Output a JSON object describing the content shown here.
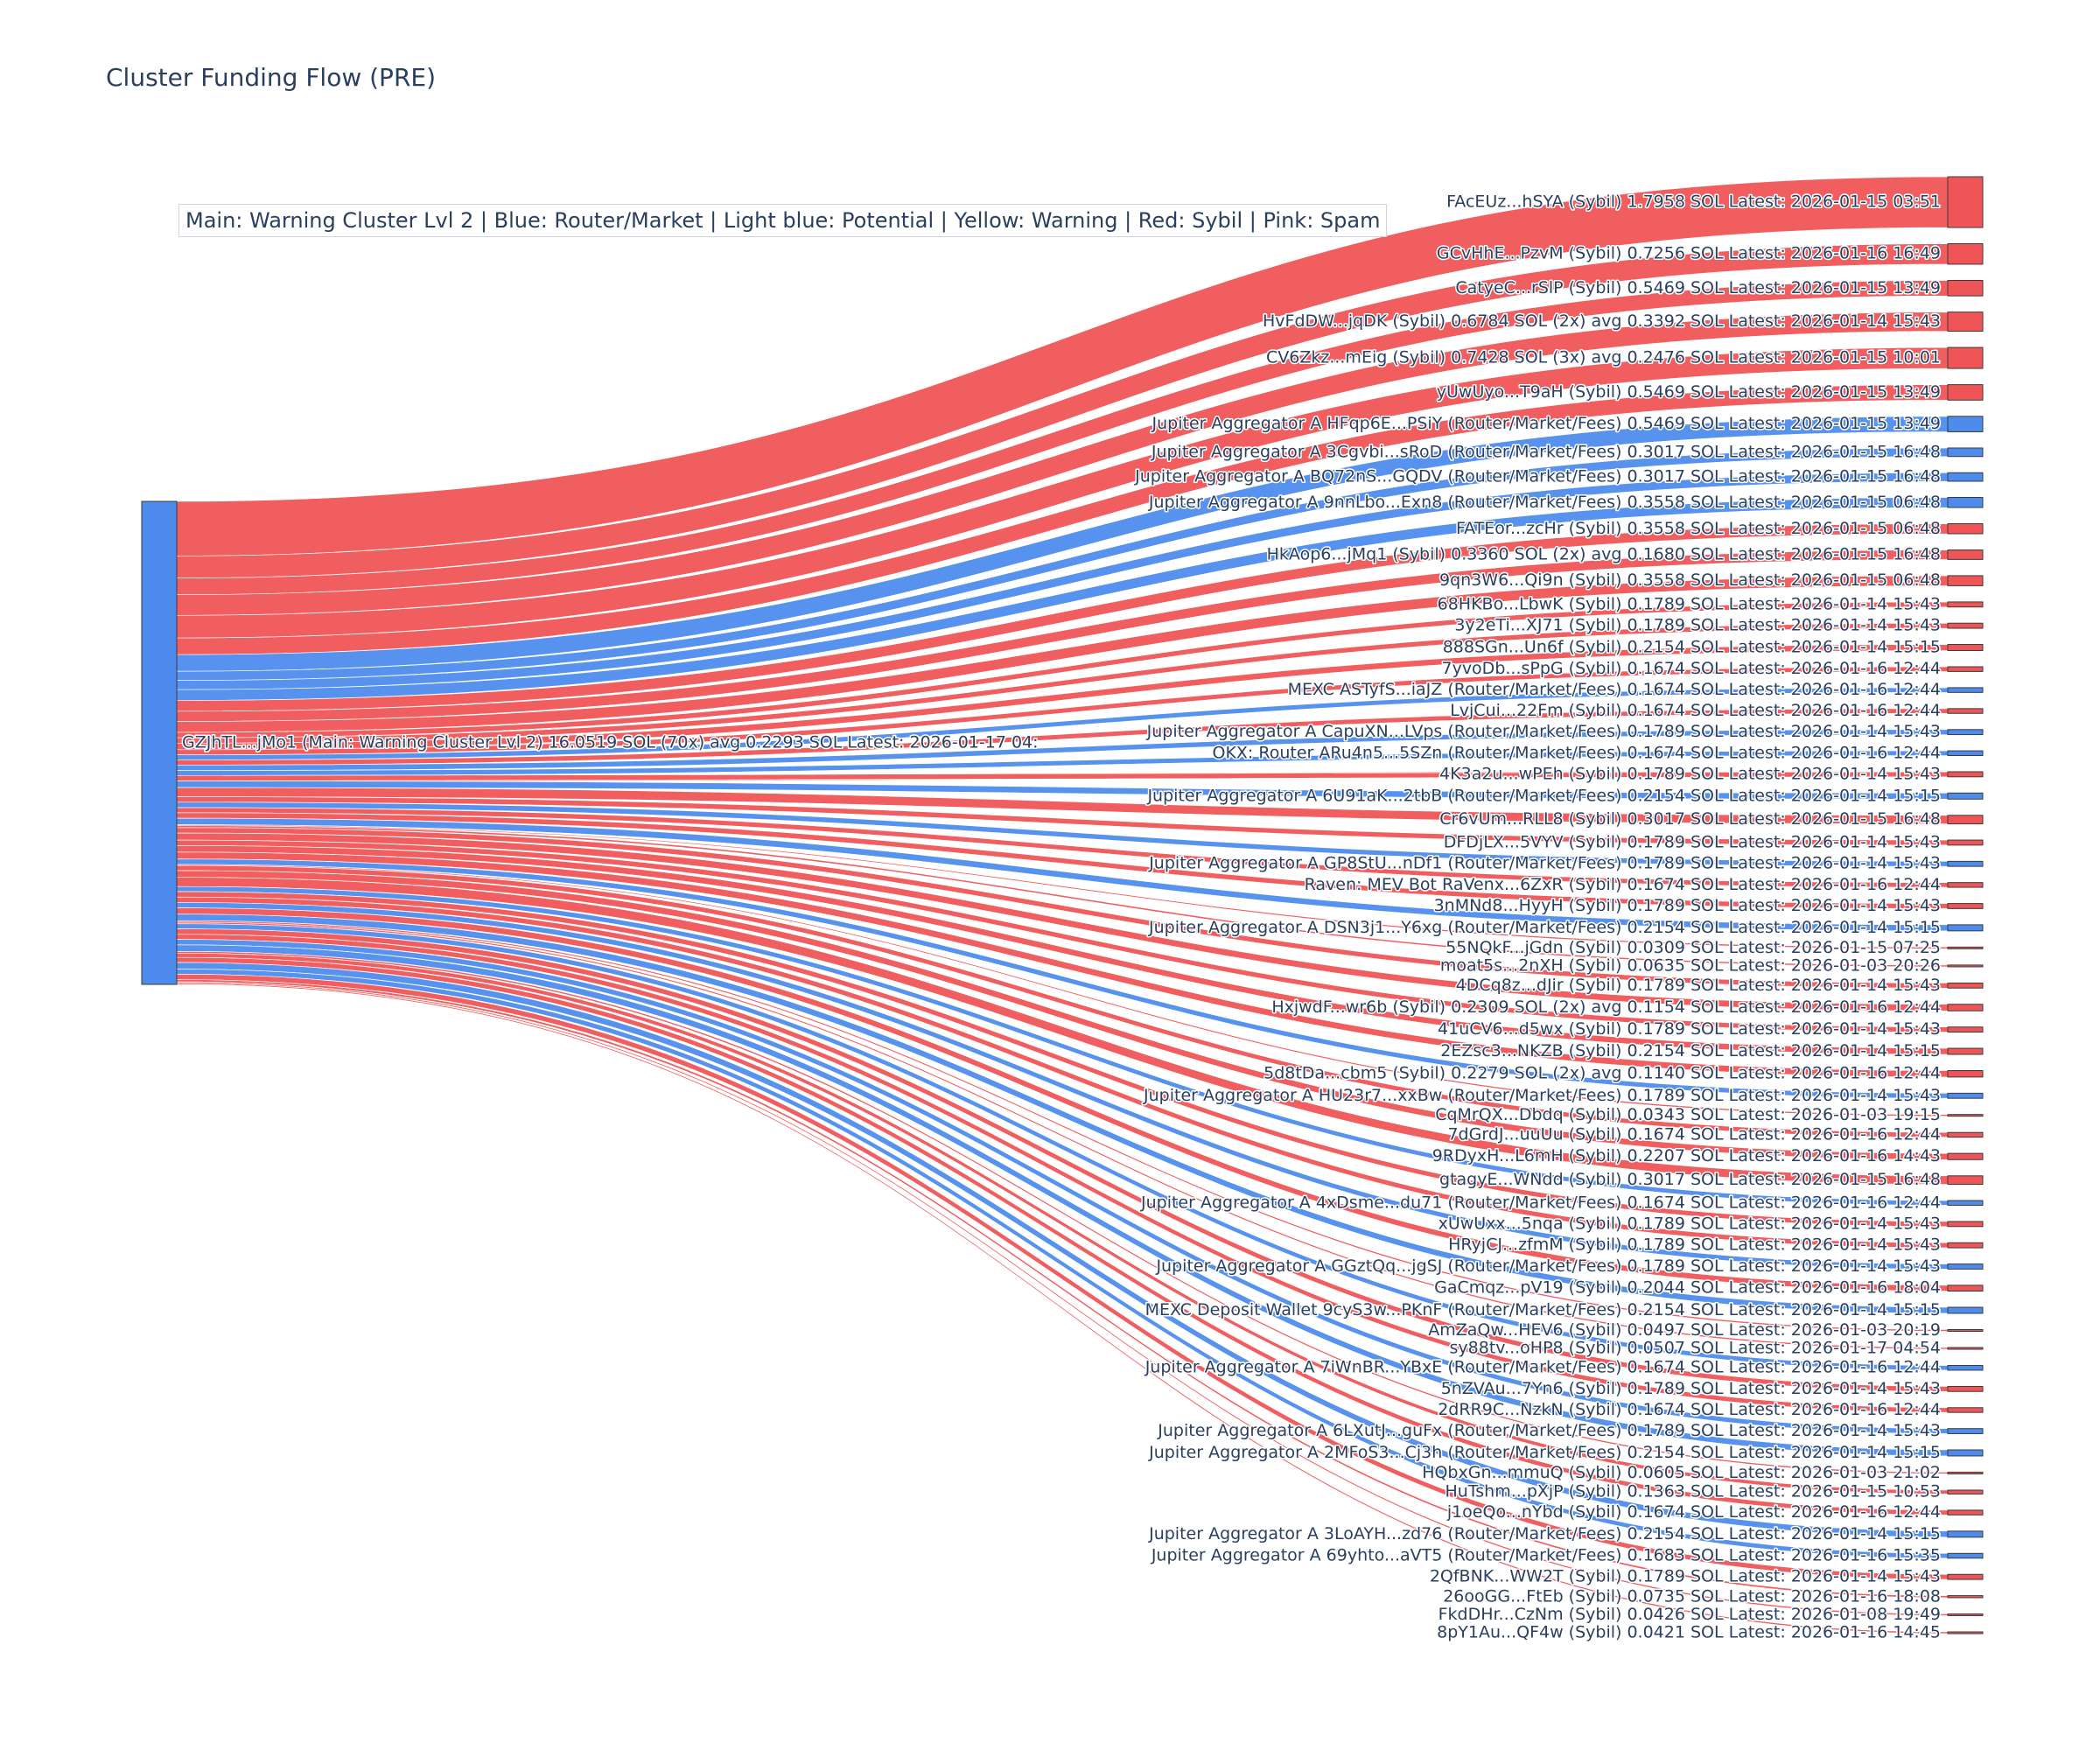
{
  "title": "Cluster Funding Flow (PRE)",
  "legend_note": "Main: Warning Cluster Lvl 2  |  Blue: Router/Market | Light blue: Potential | Yellow: Warning | Red: Sybil | Pink: Spam",
  "colors": {
    "sybil": "#ef5556",
    "router": "#4d8ced",
    "source_node": "#4d8ced",
    "node_border": "#3a3a3a",
    "text": "#2a3f5f"
  },
  "chart_data": {
    "type": "sankey",
    "title": "Cluster Funding Flow (PRE)",
    "source": {
      "label": "GZJhTL...jMo1 (Main: Warning Cluster Lvl 2) 16.0519 SOL (70x) avg 0.2293 SOL Latest: 2026-01-17 04:",
      "category": "main"
    },
    "targets": [
      {
        "label": "FAcEUz...hSYA (Sybil) 1.7958 SOL Latest: 2026-01-15 03:51",
        "value": 1.7958,
        "category": "sybil"
      },
      {
        "label": "GCvHhE...PzvM (Sybil) 0.7256 SOL Latest: 2026-01-16 16:49",
        "value": 0.7256,
        "category": "sybil"
      },
      {
        "label": "CatyeC...rSlP (Sybil) 0.5469 SOL Latest: 2026-01-15 13:49",
        "value": 0.5469,
        "category": "sybil"
      },
      {
        "label": "HvFdDW...jqDK (Sybil) 0.6784 SOL (2x) avg 0.3392 SOL Latest: 2026-01-14 15:43",
        "value": 0.6784,
        "category": "sybil"
      },
      {
        "label": "CV6Zkz...mEig (Sybil) 0.7428 SOL (3x) avg 0.2476 SOL Latest: 2026-01-15 10:01",
        "value": 0.7428,
        "category": "sybil"
      },
      {
        "label": "yUwUyo...T9aH (Sybil) 0.5469 SOL Latest: 2026-01-15 13:49",
        "value": 0.5469,
        "category": "sybil"
      },
      {
        "label": "Jupiter Aggregator A HFqp6E...PSiY (Router/Market/Fees) 0.5469 SOL Latest: 2026-01-15 13:49",
        "value": 0.5469,
        "category": "router"
      },
      {
        "label": "Jupiter Aggregator A 3Cgvbi...sRoD (Router/Market/Fees) 0.3017 SOL Latest: 2026-01-15 16:48",
        "value": 0.3017,
        "category": "router"
      },
      {
        "label": "Jupiter Aggregator A BQ72nS...GQDV (Router/Market/Fees) 0.3017 SOL Latest: 2026-01-15 16:48",
        "value": 0.3017,
        "category": "router"
      },
      {
        "label": "Jupiter Aggregator A 9nnLbo...Exn8 (Router/Market/Fees) 0.3558 SOL Latest: 2026-01-15 06:48",
        "value": 0.3558,
        "category": "router"
      },
      {
        "label": "FATEor...zcHr (Sybil) 0.3558 SOL Latest: 2026-01-15 06:48",
        "value": 0.3558,
        "category": "sybil"
      },
      {
        "label": "HkAop6...jMq1 (Sybil) 0.3360 SOL (2x) avg 0.1680 SOL Latest: 2026-01-15 16:48",
        "value": 0.336,
        "category": "sybil"
      },
      {
        "label": "9qn3W6...Qi9n (Sybil) 0.3558 SOL Latest: 2026-01-15 06:48",
        "value": 0.3558,
        "category": "sybil"
      },
      {
        "label": "68HKBo...LbwK (Sybil) 0.1789 SOL Latest: 2026-01-14 15:43",
        "value": 0.1789,
        "category": "sybil"
      },
      {
        "label": "3y2eTi...XJ71 (Sybil) 0.1789 SOL Latest: 2026-01-14 15:43",
        "value": 0.1789,
        "category": "sybil"
      },
      {
        "label": "888SGn...Un6f (Sybil) 0.2154 SOL Latest: 2026-01-14 15:15",
        "value": 0.2154,
        "category": "sybil"
      },
      {
        "label": "7yvoDb...sPpG (Sybil) 0.1674 SOL Latest: 2026-01-16 12:44",
        "value": 0.1674,
        "category": "sybil"
      },
      {
        "label": "MEXC ASTyfS...iaJZ (Router/Market/Fees) 0.1674 SOL Latest: 2026-01-16 12:44",
        "value": 0.1674,
        "category": "router"
      },
      {
        "label": "LvjCui...22Fm (Sybil) 0.1674 SOL Latest: 2026-01-16 12:44",
        "value": 0.1674,
        "category": "sybil"
      },
      {
        "label": "Jupiter Aggregator A CapuXN...LVps (Router/Market/Fees) 0.1789 SOL Latest: 2026-01-14 15:43",
        "value": 0.1789,
        "category": "router"
      },
      {
        "label": "OKX: Router ARu4n5...5SZn (Router/Market/Fees) 0.1674 SOL Latest: 2026-01-16 12:44",
        "value": 0.1674,
        "category": "router"
      },
      {
        "label": "4K3a2u...wPEh (Sybil) 0.1789 SOL Latest: 2026-01-14 15:43",
        "value": 0.1789,
        "category": "sybil"
      },
      {
        "label": "Jupiter Aggregator A 6U91aK...2tbB (Router/Market/Fees) 0.2154 SOL Latest: 2026-01-14 15:15",
        "value": 0.2154,
        "category": "router"
      },
      {
        "label": "Cr6vUm...RLL8 (Sybil) 0.3017 SOL Latest: 2026-01-15 16:48",
        "value": 0.3017,
        "category": "sybil"
      },
      {
        "label": "DFDjLX...5VYV (Sybil) 0.1789 SOL Latest: 2026-01-14 15:43",
        "value": 0.1789,
        "category": "sybil"
      },
      {
        "label": "Jupiter Aggregator A GP8StU...nDf1 (Router/Market/Fees) 0.1789 SOL Latest: 2026-01-14 15:43",
        "value": 0.1789,
        "category": "router"
      },
      {
        "label": "Raven: MEV Bot RaVenx...6ZxR (Sybil) 0.1674 SOL Latest: 2026-01-16 12:44",
        "value": 0.1674,
        "category": "sybil"
      },
      {
        "label": "3nMNd8...HyyH (Sybil) 0.1789 SOL Latest: 2026-01-14 15:43",
        "value": 0.1789,
        "category": "sybil"
      },
      {
        "label": "Jupiter Aggregator A DSN3j1...Y6xg (Router/Market/Fees) 0.2154 SOL Latest: 2026-01-14 15:15",
        "value": 0.2154,
        "category": "router"
      },
      {
        "label": "55NQkF...jGdn (Sybil) 0.0309 SOL Latest: 2026-01-15 07:25",
        "value": 0.0309,
        "category": "sybil"
      },
      {
        "label": "moat5s...2nXH (Sybil) 0.0635 SOL Latest: 2026-01-03 20:26",
        "value": 0.0635,
        "category": "sybil"
      },
      {
        "label": "4DCq8z...dJir (Sybil) 0.1789 SOL Latest: 2026-01-14 15:43",
        "value": 0.1789,
        "category": "sybil"
      },
      {
        "label": "HxjwdF...wr6b (Sybil) 0.2309 SOL (2x) avg 0.1154 SOL Latest: 2026-01-16 12:44",
        "value": 0.2309,
        "category": "sybil"
      },
      {
        "label": "41uCV6...d5wx (Sybil) 0.1789 SOL Latest: 2026-01-14 15:43",
        "value": 0.1789,
        "category": "sybil"
      },
      {
        "label": "2EZsc3...NKZB (Sybil) 0.2154 SOL Latest: 2026-01-14 15:15",
        "value": 0.2154,
        "category": "sybil"
      },
      {
        "label": "5d8tDa...cbm5 (Sybil) 0.2279 SOL (2x) avg 0.1140 SOL Latest: 2026-01-16 12:44",
        "value": 0.2279,
        "category": "sybil"
      },
      {
        "label": "Jupiter Aggregator A HU23r7...xxBw (Router/Market/Fees) 0.1789 SOL Latest: 2026-01-14 15:43",
        "value": 0.1789,
        "category": "router"
      },
      {
        "label": "CqMrQX...Dbdq (Sybil) 0.0343 SOL Latest: 2026-01-03 19:15",
        "value": 0.0343,
        "category": "sybil"
      },
      {
        "label": "7dGrdJ...uuUu (Sybil) 0.1674 SOL Latest: 2026-01-16 12:44",
        "value": 0.1674,
        "category": "sybil"
      },
      {
        "label": "9RDyxH...L6mH (Sybil) 0.2207 SOL Latest: 2026-01-16 14:43",
        "value": 0.2207,
        "category": "sybil"
      },
      {
        "label": "gtagyE...WNdd (Sybil) 0.3017 SOL Latest: 2026-01-15 16:48",
        "value": 0.3017,
        "category": "sybil"
      },
      {
        "label": "Jupiter Aggregator A 4xDsme...du71 (Router/Market/Fees) 0.1674 SOL Latest: 2026-01-16 12:44",
        "value": 0.1674,
        "category": "router"
      },
      {
        "label": "xUwUxx...5nqa (Sybil) 0.1789 SOL Latest: 2026-01-14 15:43",
        "value": 0.1789,
        "category": "sybil"
      },
      {
        "label": "HRyjCJ...zfmM (Sybil) 0.1789 SOL Latest: 2026-01-14 15:43",
        "value": 0.1789,
        "category": "sybil"
      },
      {
        "label": "Jupiter Aggregator A GGztQq...jgSJ (Router/Market/Fees) 0.1789 SOL Latest: 2026-01-14 15:43",
        "value": 0.1789,
        "category": "router"
      },
      {
        "label": "GaCmqz...pV19 (Sybil) 0.2044 SOL Latest: 2026-01-16 18:04",
        "value": 0.2044,
        "category": "sybil"
      },
      {
        "label": "MEXC Deposit Wallet 9cyS3w...PKnF (Router/Market/Fees) 0.2154 SOL Latest: 2026-01-14 15:15",
        "value": 0.2154,
        "category": "router"
      },
      {
        "label": "AmZaQw...HEV6 (Sybil) 0.0497 SOL Latest: 2026-01-03 20:19",
        "value": 0.0497,
        "category": "sybil"
      },
      {
        "label": "sy88tv...oHP8 (Sybil) 0.0507 SOL Latest: 2026-01-17 04:54",
        "value": 0.0507,
        "category": "sybil"
      },
      {
        "label": "Jupiter Aggregator A 7iWnBR...YBxE (Router/Market/Fees) 0.1674 SOL Latest: 2026-01-16 12:44",
        "value": 0.1674,
        "category": "router"
      },
      {
        "label": "5nZVAu...7Yn6 (Sybil) 0.1789 SOL Latest: 2026-01-14 15:43",
        "value": 0.1789,
        "category": "sybil"
      },
      {
        "label": "2dRR9C...NzkN (Sybil) 0.1674 SOL Latest: 2026-01-16 12:44",
        "value": 0.1674,
        "category": "sybil"
      },
      {
        "label": "Jupiter Aggregator A 6LXutJ...guFx (Router/Market/Fees) 0.1789 SOL Latest: 2026-01-14 15:43",
        "value": 0.1789,
        "category": "router"
      },
      {
        "label": "Jupiter Aggregator A 2MFoS3...Cj3h (Router/Market/Fees) 0.2154 SOL Latest: 2026-01-14 15:15",
        "value": 0.2154,
        "category": "router"
      },
      {
        "label": "HQbxGn...mmuQ (Sybil) 0.0605 SOL Latest: 2026-01-03 21:02",
        "value": 0.0605,
        "category": "sybil"
      },
      {
        "label": "HuTshm...pXjP (Sybil) 0.1363 SOL Latest: 2026-01-15 10:53",
        "value": 0.1363,
        "category": "sybil"
      },
      {
        "label": "j1oeQo...nYbd (Sybil) 0.1674 SOL Latest: 2026-01-16 12:44",
        "value": 0.1674,
        "category": "sybil"
      },
      {
        "label": "Jupiter Aggregator A 3LoAYH...zd76 (Router/Market/Fees) 0.2154 SOL Latest: 2026-01-14 15:15",
        "value": 0.2154,
        "category": "router"
      },
      {
        "label": "Jupiter Aggregator A 69yhto...aVT5 (Router/Market/Fees) 0.1683 SOL Latest: 2026-01-16 15:35",
        "value": 0.1683,
        "category": "router"
      },
      {
        "label": "2QfBNK...WW2T (Sybil) 0.1789 SOL Latest: 2026-01-14 15:43",
        "value": 0.1789,
        "category": "sybil"
      },
      {
        "label": "26ooGG...FtEb (Sybil) 0.0735 SOL Latest: 2026-01-16 18:08",
        "value": 0.0735,
        "category": "sybil"
      },
      {
        "label": "FkdDHr...CzNm (Sybil) 0.0426 SOL Latest: 2026-01-08 19:49",
        "value": 0.0426,
        "category": "sybil"
      },
      {
        "label": "8pY1Au...QF4w (Sybil) 0.0421 SOL Latest: 2026-01-16 14:45",
        "value": 0.0421,
        "category": "sybil"
      }
    ]
  }
}
